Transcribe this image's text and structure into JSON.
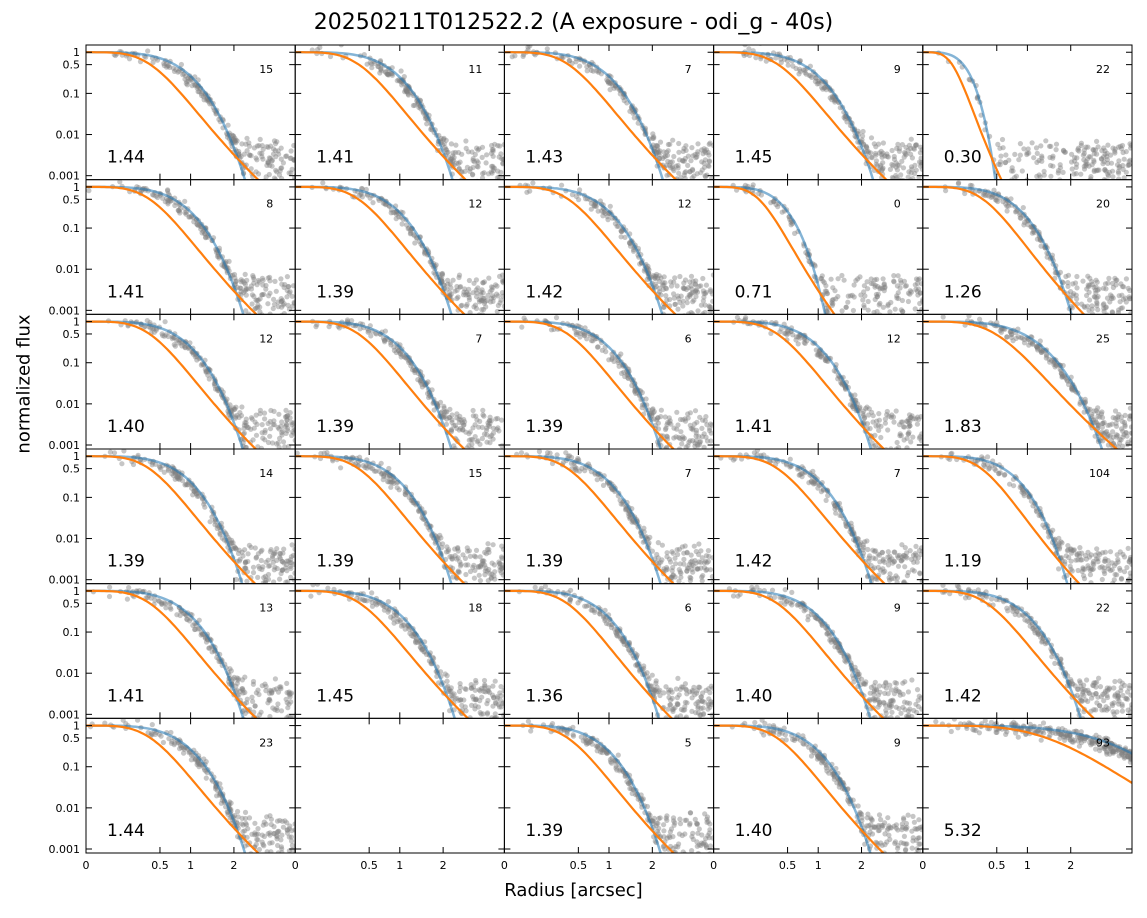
{
  "chart_data": {
    "type": "scatter",
    "title": "20250211T012522.2 (A exposure - odi_g - 40s)",
    "xlabel": "Radius [arcsec]",
    "ylabel": "normalized flux",
    "x_scale": "sqrt",
    "y_scale": "log",
    "xlim": [
      0,
      4.0
    ],
    "ylim": [
      0.0008,
      1.5
    ],
    "x_ticks": [
      0,
      0.5,
      1,
      2
    ],
    "x_tick_labels": [
      "0",
      "0.5",
      "1",
      "2"
    ],
    "y_ticks": [
      1,
      0.5,
      0.1,
      0.01,
      0.001
    ],
    "y_tick_labels": [
      "1",
      "0.5",
      "0.1",
      "0.01",
      "0.001"
    ],
    "grid": false,
    "rows": 6,
    "cols": 5,
    "colors": {
      "points": "#808080",
      "fit_blue": "#1f77b4",
      "fit_orange": "#ff7f0e"
    },
    "panels": [
      {
        "fwhm": "1.44",
        "count": "15"
      },
      {
        "fwhm": "1.41",
        "count": "11"
      },
      {
        "fwhm": "1.43",
        "count": "7"
      },
      {
        "fwhm": "1.45",
        "count": "9"
      },
      {
        "fwhm": "0.30",
        "count": "22"
      },
      {
        "fwhm": "1.41",
        "count": "8"
      },
      {
        "fwhm": "1.39",
        "count": "12"
      },
      {
        "fwhm": "1.42",
        "count": "12"
      },
      {
        "fwhm": "0.71",
        "count": "0"
      },
      {
        "fwhm": "1.26",
        "count": "20"
      },
      {
        "fwhm": "1.40",
        "count": "12"
      },
      {
        "fwhm": "1.39",
        "count": "7"
      },
      {
        "fwhm": "1.39",
        "count": "6"
      },
      {
        "fwhm": "1.41",
        "count": "12"
      },
      {
        "fwhm": "1.83",
        "count": "25"
      },
      {
        "fwhm": "1.39",
        "count": "14"
      },
      {
        "fwhm": "1.39",
        "count": "15"
      },
      {
        "fwhm": "1.39",
        "count": "7"
      },
      {
        "fwhm": "1.42",
        "count": "7"
      },
      {
        "fwhm": "1.19",
        "count": "104"
      },
      {
        "fwhm": "1.41",
        "count": "13"
      },
      {
        "fwhm": "1.45",
        "count": "18"
      },
      {
        "fwhm": "1.36",
        "count": "6"
      },
      {
        "fwhm": "1.40",
        "count": "9"
      },
      {
        "fwhm": "1.42",
        "count": "22"
      },
      {
        "fwhm": "1.44",
        "count": "23"
      },
      {
        "fwhm": "",
        "count": ""
      },
      {
        "fwhm": "1.39",
        "count": "5"
      },
      {
        "fwhm": "1.40",
        "count": "9"
      },
      {
        "fwhm": "5.32",
        "count": "93"
      }
    ]
  }
}
